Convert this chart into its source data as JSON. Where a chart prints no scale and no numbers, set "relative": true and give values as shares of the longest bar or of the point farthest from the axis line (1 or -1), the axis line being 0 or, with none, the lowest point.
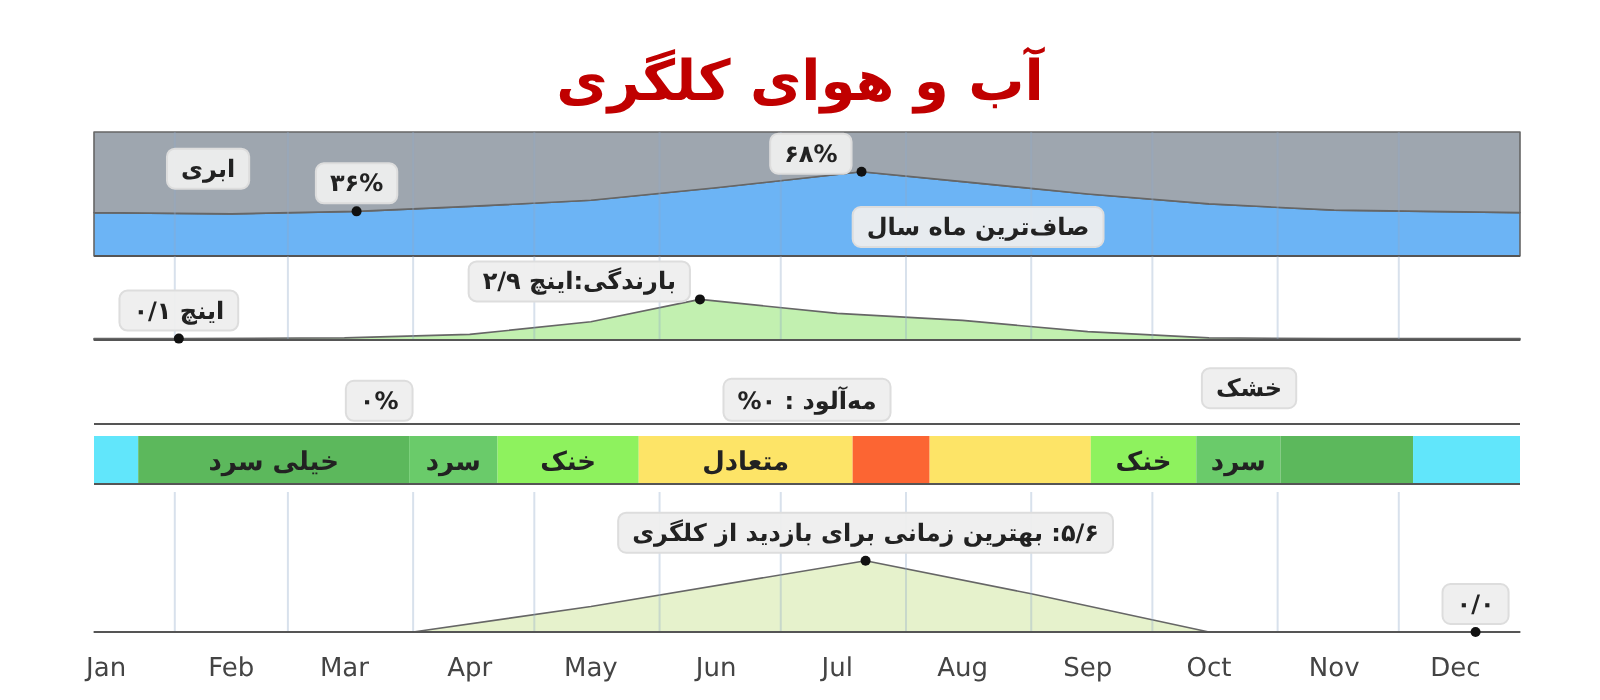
{
  "chart_data": [
    {
      "type": "area",
      "title": "آب و هوای کلگری",
      "stacked": true,
      "xlim": [
        "--01-12",
        "--12-31"
      ],
      "ylim": [
        0,
        100
      ],
      "tick_labels": false,
      "grid": "x",
      "xticks": [
        {
          "value": "--02-01",
          "label": null
        },
        {
          "value": "--03-01",
          "label": null
        },
        {
          "value": "--04-01",
          "label": null
        },
        {
          "value": "--05-01",
          "label": null
        },
        {
          "value": "--06-01",
          "label": null
        },
        {
          "value": "--07-01",
          "label": null
        },
        {
          "value": "--08-01",
          "label": null
        },
        {
          "value": "--09-01",
          "label": null
        },
        {
          "value": "--10-01",
          "label": null
        },
        {
          "value": "--11-01",
          "label": null
        },
        {
          "value": "--12-01",
          "label": null
        }
      ],
      "x": [
        "--01-12",
        "--02-15",
        "--03-18",
        "--04-15",
        "--05-15",
        "--06-15",
        "--07-21",
        "--08-15",
        "--09-15",
        "--10-15",
        "--11-15",
        "--12-31"
      ],
      "series": [
        {
          "color": "#6cb4f5",
          "values": [
            35,
            34,
            36,
            40,
            45,
            55,
            68,
            60,
            50,
            42,
            37,
            35
          ],
          "value_labels": [
            null,
            null,
            "۳۶%",
            null,
            null,
            null,
            "۶۸%",
            null,
            null,
            null,
            null,
            null
          ]
        },
        {
          "color": "#9ea6af",
          "values": [
            65,
            66,
            64,
            60,
            55,
            45,
            32,
            40,
            50,
            58,
            63,
            65
          ]
        }
      ],
      "annotations": [
        "ابری",
        "صاف‌ترین ماه سال"
      ]
    },
    {
      "type": "area",
      "xlim": [
        "--01-12",
        "--12-31"
      ],
      "ylim": [
        0,
        6
      ],
      "tick_labels": false,
      "grid": "x",
      "xticks": [
        {
          "value": "--02-01",
          "label": null
        },
        {
          "value": "--03-01",
          "label": null
        },
        {
          "value": "--04-01",
          "label": null
        },
        {
          "value": "--05-01",
          "label": null
        },
        {
          "value": "--06-01",
          "label": null
        },
        {
          "value": "--07-01",
          "label": null
        },
        {
          "value": "--08-01",
          "label": null
        },
        {
          "value": "--09-01",
          "label": null
        },
        {
          "value": "--10-01",
          "label": null
        },
        {
          "value": "--11-01",
          "label": null
        },
        {
          "value": "--12-01",
          "label": null
        }
      ],
      "x": [
        "--01-12",
        "--02-02",
        "--03-15",
        "--04-15",
        "--05-15",
        "--06-11",
        "--07-15",
        "--08-15",
        "--09-15",
        "--10-15",
        "--11-15",
        "--12-31"
      ],
      "series": [
        {
          "color": "#c2f0b0",
          "values": [
            0.1,
            0.1,
            0.15,
            0.4,
            1.3,
            2.9,
            1.9,
            1.4,
            0.6,
            0.15,
            0.1,
            0.1
          ],
          "value_labels": [
            null,
            "اینچ ۰/۱",
            null,
            null,
            null,
            "بارندگی:اینچ ۲/۹",
            null,
            null,
            null,
            null,
            null,
            null
          ]
        }
      ]
    },
    {
      "type": "other",
      "annotations": [
        "۰%",
        "مه‌آلود : ۰%",
        "خشک"
      ]
    },
    {
      "type": "bar",
      "orientation": "horizontal",
      "stacked": true,
      "relative": true,
      "categories": [
        null
      ],
      "series": [
        {
          "color": "#61e6fb",
          "values": [
            0.031
          ]
        },
        {
          "name": "خیلی سرد",
          "color": "#5cb85c",
          "values": [
            0.19
          ]
        },
        {
          "name": "سرد",
          "color": "#6acb6a",
          "values": [
            0.062
          ]
        },
        {
          "name": "خنک",
          "color": "#8ef25e",
          "values": [
            0.099
          ]
        },
        {
          "name": "متعادل",
          "color": "#fde467",
          "values": [
            0.15
          ]
        },
        {
          "color": "#fc6533",
          "values": [
            0.054
          ]
        },
        {
          "color": "#fde467",
          "values": [
            0.113
          ]
        },
        {
          "name": "خنک",
          "color": "#8ef25e",
          "values": [
            0.074
          ]
        },
        {
          "name": "سرد",
          "color": "#6acb6a",
          "values": [
            0.059
          ]
        },
        {
          "color": "#5cb85c",
          "values": [
            0.093
          ]
        },
        {
          "color": "#61e6fb",
          "values": [
            0.075
          ]
        }
      ]
    },
    {
      "type": "area",
      "xlim": [
        "--01-12",
        "--12-31"
      ],
      "ylim": [
        0,
        11
      ],
      "tick_labels": "x",
      "grid": "x",
      "xticks": [
        {
          "value": "--01-15",
          "label": "Jan"
        },
        {
          "value": "--02-01",
          "label": null
        },
        {
          "value": "--02-15",
          "label": "Feb"
        },
        {
          "value": "--03-01",
          "label": null
        },
        {
          "value": "--03-15",
          "label": "Mar"
        },
        {
          "value": "--04-01",
          "label": null
        },
        {
          "value": "--04-15",
          "label": "Apr"
        },
        {
          "value": "--05-01",
          "label": null
        },
        {
          "value": "--05-15",
          "label": "May"
        },
        {
          "value": "--06-01",
          "label": null
        },
        {
          "value": "--06-15",
          "label": "Jun"
        },
        {
          "value": "--07-01",
          "label": null
        },
        {
          "value": "--07-15",
          "label": "Jul"
        },
        {
          "value": "--08-01",
          "label": null
        },
        {
          "value": "--08-15",
          "label": "Aug"
        },
        {
          "value": "--09-01",
          "label": null
        },
        {
          "value": "--09-15",
          "label": "Sep"
        },
        {
          "value": "--10-01",
          "label": null
        },
        {
          "value": "--10-15",
          "label": "Oct"
        },
        {
          "value": "--11-01",
          "label": null
        },
        {
          "value": "--11-15",
          "label": "Nov"
        },
        {
          "value": "--12-01",
          "label": null
        },
        {
          "value": "--12-15",
          "label": "Dec"
        }
      ],
      "x": [
        "--01-12",
        "--04-01",
        "--05-15",
        "--07-22",
        "--09-01",
        "--10-15",
        "--12-20",
        "--12-31"
      ],
      "series": [
        {
          "color": "#e6f2cc",
          "values": [
            0,
            0,
            2,
            5.6,
            3,
            0,
            0,
            0
          ],
          "value_labels": [
            null,
            null,
            null,
            "۵/۶: بهترین زمانی برای بازدید از کلگری",
            null,
            null,
            "۰/۰",
            null
          ]
        }
      ]
    }
  ]
}
